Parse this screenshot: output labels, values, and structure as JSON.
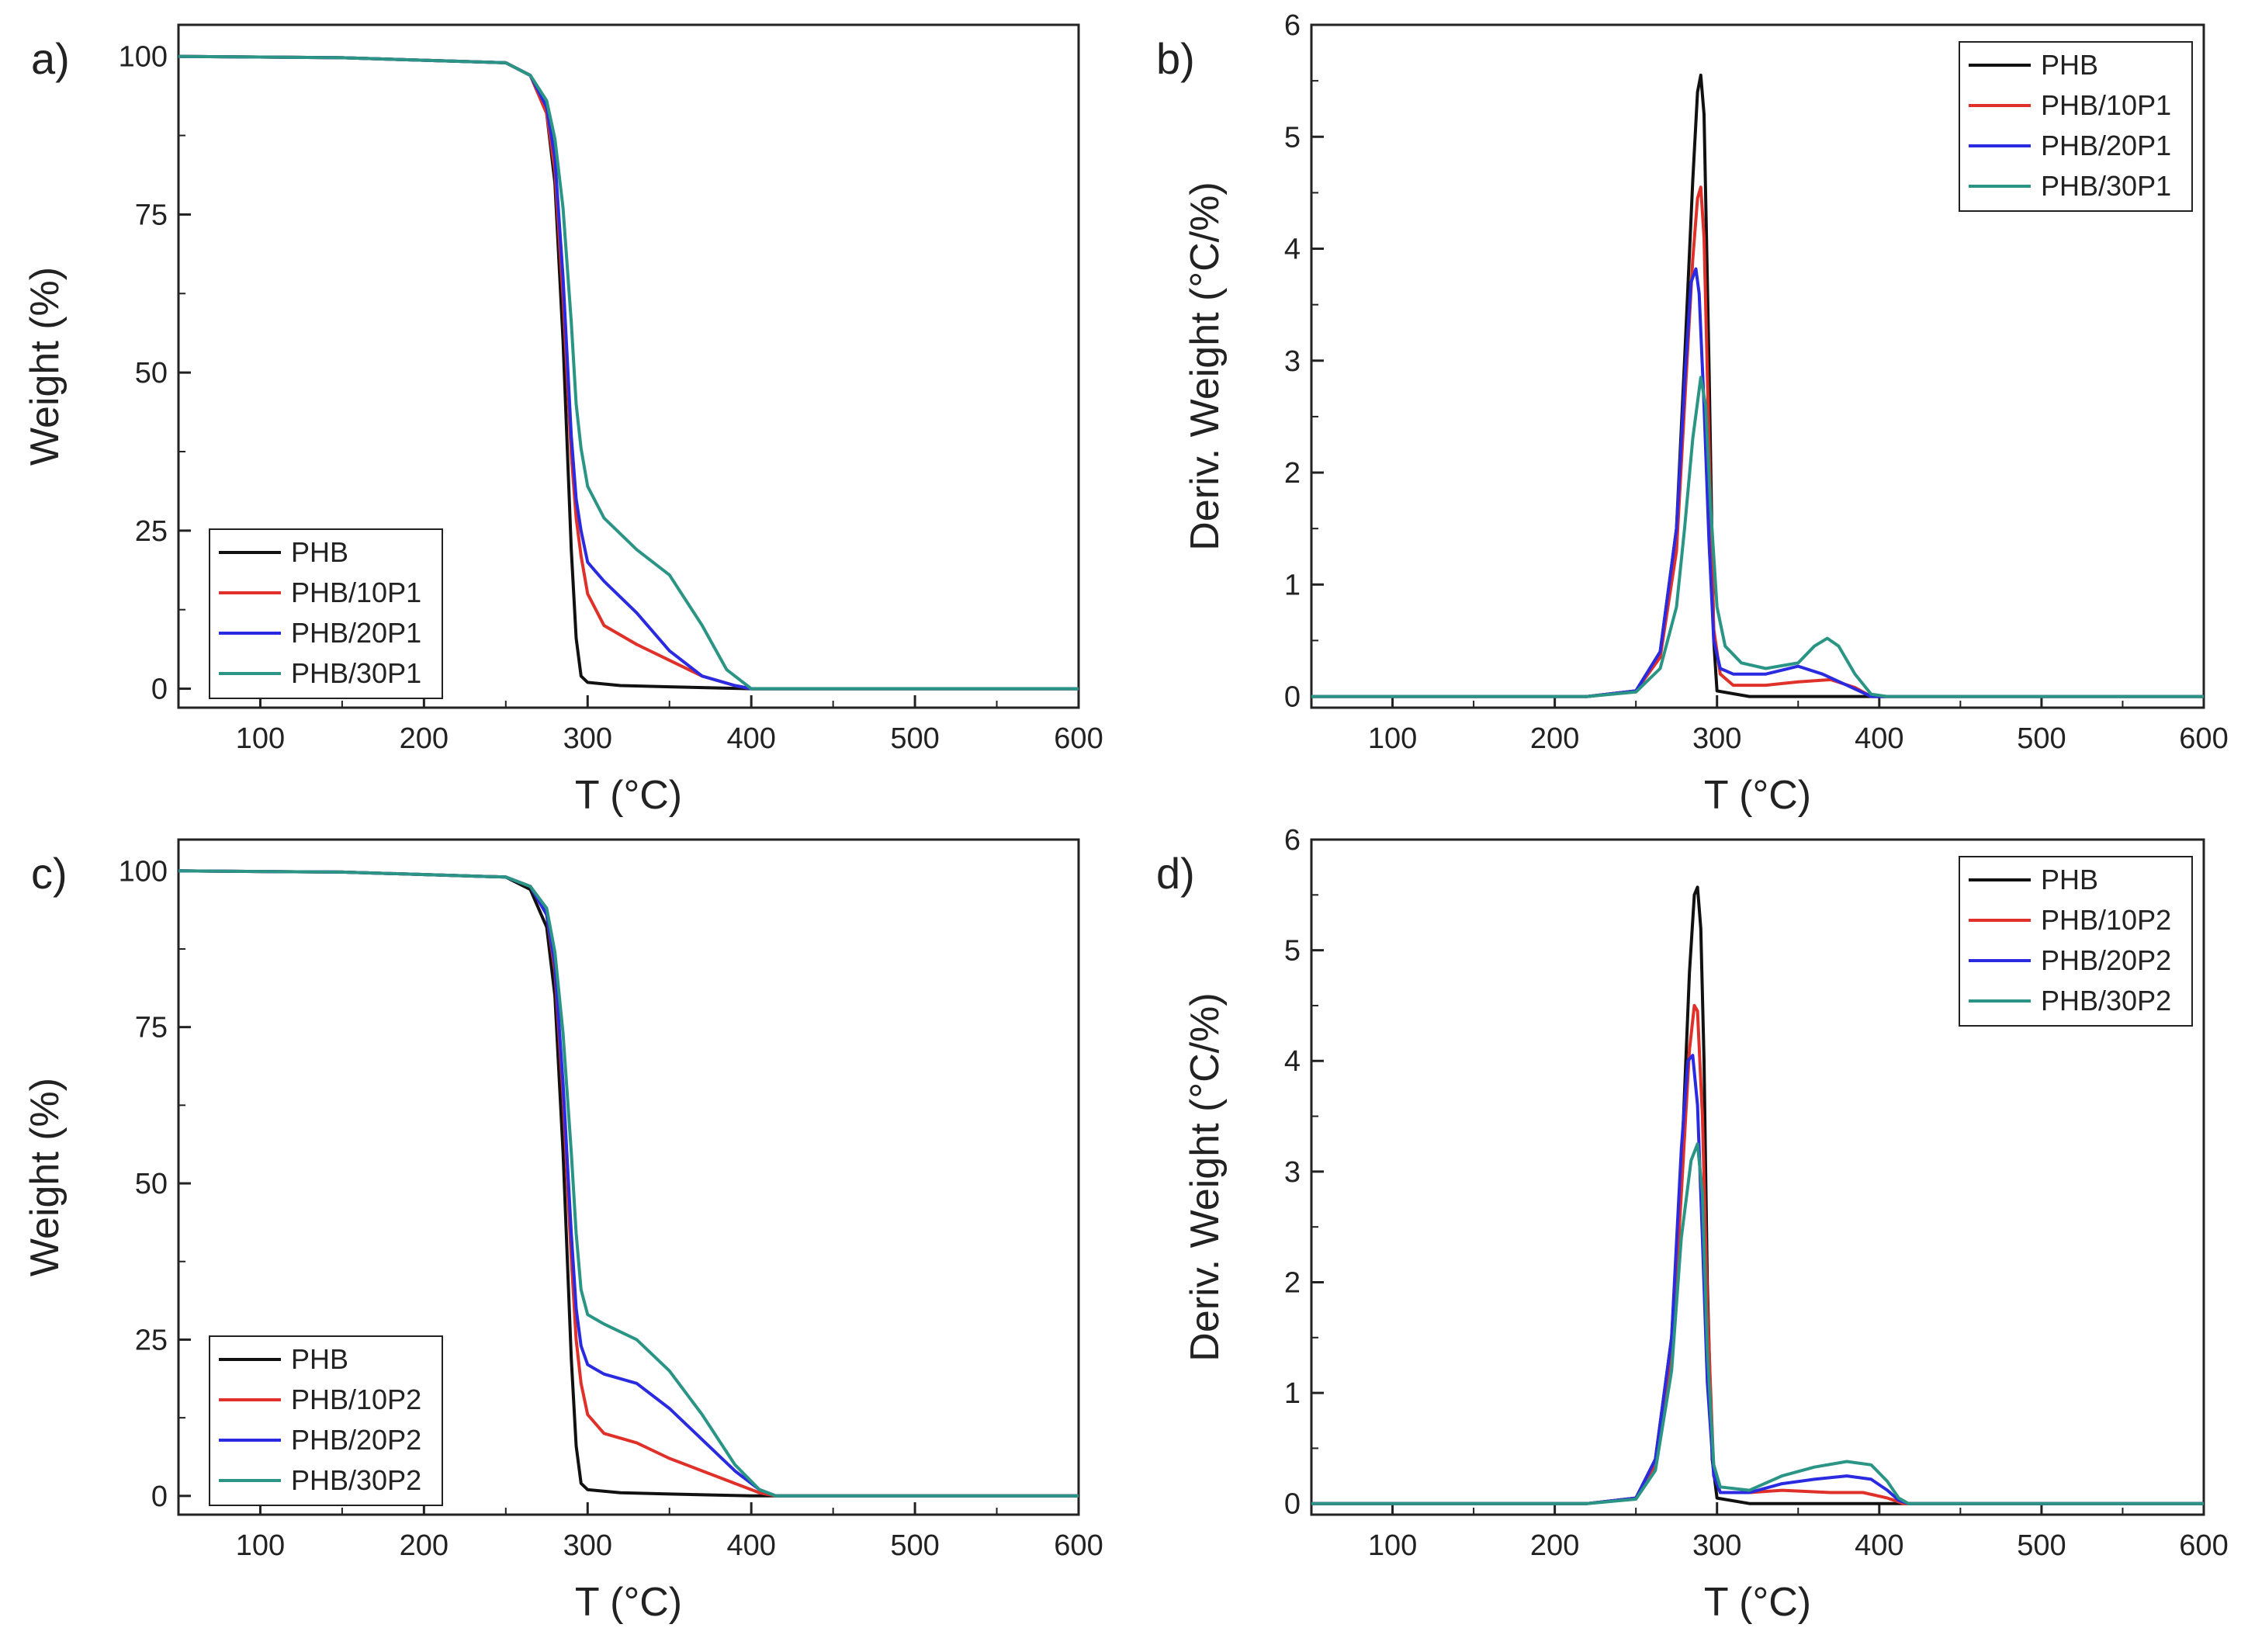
{
  "figure": "Thermogravimetric analysis (TGA) and derivative (DTG) curves",
  "colors": {
    "PHB": "#111111",
    "10": "#e0302a",
    "20": "#2a2ae0",
    "30": "#2a9485"
  },
  "chart_data": [
    {
      "panel": "a)",
      "type": "line",
      "xlabel": "T (°C)",
      "ylabel": "Weight (%)",
      "xlim": [
        50,
        600
      ],
      "ylim": [
        -3,
        105
      ],
      "xticks": [
        100,
        200,
        300,
        400,
        500,
        600
      ],
      "yticks": [
        0,
        25,
        50,
        75,
        100
      ],
      "legend_position": "bottom-left",
      "series": [
        {
          "name": "PHB",
          "color_key": "PHB",
          "x": [
            50,
            150,
            250,
            265,
            275,
            280,
            285,
            290,
            293,
            296,
            300,
            320,
            350,
            400,
            600
          ],
          "y": [
            100,
            99.8,
            99,
            97,
            91,
            80,
            55,
            22,
            8,
            2,
            1,
            0.5,
            0.3,
            0,
            0
          ]
        },
        {
          "name": "PHB/10P1",
          "color_key": "10",
          "x": [
            50,
            150,
            250,
            265,
            275,
            280,
            285,
            290,
            293,
            296,
            300,
            310,
            330,
            350,
            370,
            390,
            400,
            600
          ],
          "y": [
            100,
            99.8,
            99,
            97,
            91,
            82,
            62,
            37,
            27,
            21,
            15,
            10,
            7,
            4.5,
            2,
            0.5,
            0,
            0
          ]
        },
        {
          "name": "PHB/20P1",
          "color_key": "20",
          "x": [
            50,
            150,
            250,
            265,
            275,
            280,
            285,
            290,
            293,
            296,
            300,
            310,
            330,
            350,
            370,
            390,
            400,
            600
          ],
          "y": [
            100,
            99.8,
            99,
            97,
            92,
            84,
            65,
            40,
            30,
            25,
            20,
            17,
            12,
            6,
            2,
            0.5,
            0,
            0
          ]
        },
        {
          "name": "PHB/30P1",
          "color_key": "30",
          "x": [
            50,
            150,
            250,
            265,
            275,
            280,
            285,
            290,
            293,
            296,
            300,
            310,
            330,
            350,
            370,
            385,
            400,
            600
          ],
          "y": [
            100,
            99.8,
            99,
            97,
            93,
            87,
            76,
            58,
            45,
            38,
            32,
            27,
            22,
            18,
            10,
            3,
            0,
            0
          ]
        }
      ]
    },
    {
      "panel": "b)",
      "type": "line",
      "xlabel": "T (°C)",
      "ylabel": "Deriv. Weight (°C/%)",
      "xlim": [
        50,
        600
      ],
      "ylim": [
        -0.1,
        6
      ],
      "xticks": [
        100,
        200,
        300,
        400,
        500,
        600
      ],
      "yticks": [
        0,
        1,
        2,
        3,
        4,
        5,
        6
      ],
      "legend_position": "top-right",
      "series": [
        {
          "name": "PHB",
          "color_key": "PHB",
          "x": [
            50,
            220,
            250,
            265,
            275,
            280,
            285,
            288,
            290,
            292,
            295,
            298,
            300,
            320,
            600
          ],
          "y": [
            0,
            0,
            0.05,
            0.4,
            1.5,
            3,
            4.6,
            5.4,
            5.55,
            5.2,
            3,
            0.5,
            0.05,
            0,
            0
          ]
        },
        {
          "name": "PHB/10P1",
          "color_key": "10",
          "x": [
            50,
            220,
            250,
            265,
            275,
            280,
            285,
            288,
            290,
            292,
            295,
            298,
            302,
            310,
            330,
            350,
            370,
            385,
            395,
            600
          ],
          "y": [
            0,
            0,
            0.05,
            0.35,
            1.3,
            2.6,
            3.9,
            4.45,
            4.55,
            4.1,
            2.3,
            0.6,
            0.2,
            0.1,
            0.1,
            0.13,
            0.15,
            0.08,
            0,
            0
          ]
        },
        {
          "name": "PHB/20P1",
          "color_key": "20",
          "x": [
            50,
            220,
            250,
            265,
            275,
            280,
            284,
            287,
            289,
            292,
            295,
            298,
            302,
            310,
            330,
            350,
            365,
            380,
            395,
            600
          ],
          "y": [
            0,
            0,
            0.05,
            0.4,
            1.5,
            2.8,
            3.7,
            3.82,
            3.6,
            2.6,
            1.4,
            0.5,
            0.25,
            0.2,
            0.2,
            0.27,
            0.2,
            0.1,
            0,
            0
          ]
        },
        {
          "name": "PHB/30P1",
          "color_key": "30",
          "x": [
            50,
            220,
            250,
            265,
            275,
            280,
            285,
            290,
            293,
            296,
            300,
            305,
            315,
            330,
            350,
            360,
            368,
            375,
            385,
            395,
            405,
            600
          ],
          "y": [
            0,
            0,
            0.04,
            0.25,
            0.8,
            1.5,
            2.3,
            2.85,
            2.6,
            1.7,
            0.8,
            0.45,
            0.3,
            0.25,
            0.3,
            0.45,
            0.52,
            0.45,
            0.2,
            0.02,
            0,
            0
          ]
        }
      ]
    },
    {
      "panel": "c)",
      "type": "line",
      "xlabel": "T (°C)",
      "ylabel": "Weight (%)",
      "xlim": [
        50,
        600
      ],
      "ylim": [
        -3,
        105
      ],
      "xticks": [
        100,
        200,
        300,
        400,
        500,
        600
      ],
      "yticks": [
        0,
        25,
        50,
        75,
        100
      ],
      "legend_position": "bottom-left",
      "series": [
        {
          "name": "PHB",
          "color_key": "PHB",
          "x": [
            50,
            150,
            250,
            265,
            275,
            280,
            285,
            290,
            293,
            296,
            300,
            320,
            350,
            400,
            600
          ],
          "y": [
            100,
            99.8,
            99,
            97,
            91,
            80,
            55,
            22,
            8,
            2,
            1,
            0.5,
            0.3,
            0,
            0
          ]
        },
        {
          "name": "PHB/10P2",
          "color_key": "10",
          "x": [
            50,
            150,
            250,
            265,
            275,
            280,
            285,
            290,
            293,
            296,
            300,
            310,
            330,
            350,
            370,
            390,
            405,
            415,
            600
          ],
          "y": [
            100,
            99.8,
            99,
            97.5,
            93,
            84,
            64,
            38,
            25,
            18,
            13,
            10,
            8.5,
            6,
            4,
            2,
            0.5,
            0,
            0
          ]
        },
        {
          "name": "PHB/20P2",
          "color_key": "20",
          "x": [
            50,
            150,
            250,
            265,
            275,
            280,
            285,
            290,
            293,
            296,
            300,
            310,
            330,
            350,
            370,
            390,
            405,
            415,
            600
          ],
          "y": [
            100,
            99.8,
            99,
            97.5,
            93,
            85,
            66,
            42,
            30,
            24,
            21,
            19.5,
            18,
            14,
            9,
            4,
            1,
            0,
            0
          ]
        },
        {
          "name": "PHB/30P2",
          "color_key": "30",
          "x": [
            50,
            150,
            250,
            265,
            275,
            280,
            285,
            290,
            293,
            296,
            300,
            310,
            330,
            350,
            370,
            390,
            405,
            415,
            600
          ],
          "y": [
            100,
            99.8,
            99,
            97.5,
            94,
            87,
            74,
            55,
            42,
            33,
            29,
            27.5,
            25,
            20,
            13,
            5,
            1,
            0,
            0
          ]
        }
      ]
    },
    {
      "panel": "d)",
      "type": "line",
      "xlabel": "T (°C)",
      "ylabel": "Deriv. Weight (°C/%)",
      "xlim": [
        50,
        600
      ],
      "ylim": [
        -0.1,
        6
      ],
      "xticks": [
        100,
        200,
        300,
        400,
        500,
        600
      ],
      "yticks": [
        0,
        1,
        2,
        3,
        4,
        5,
        6
      ],
      "legend_position": "top-right",
      "series": [
        {
          "name": "PHB",
          "color_key": "PHB",
          "x": [
            50,
            220,
            250,
            262,
            272,
            278,
            283,
            286,
            288,
            290,
            292,
            294,
            297,
            300,
            320,
            600
          ],
          "y": [
            0,
            0,
            0.05,
            0.4,
            1.5,
            3,
            4.8,
            5.5,
            5.57,
            5.2,
            4,
            2,
            0.4,
            0.05,
            0,
            0
          ]
        },
        {
          "name": "PHB/10P2",
          "color_key": "10",
          "x": [
            50,
            220,
            250,
            262,
            272,
            278,
            283,
            286,
            288,
            291,
            294,
            298,
            302,
            320,
            340,
            370,
            390,
            405,
            415,
            600
          ],
          "y": [
            0,
            0,
            0.05,
            0.35,
            1.3,
            2.8,
            4.1,
            4.5,
            4.45,
            3.5,
            1.8,
            0.3,
            0.1,
            0.1,
            0.12,
            0.1,
            0.1,
            0.05,
            0,
            0
          ]
        },
        {
          "name": "PHB/20P2",
          "color_key": "20",
          "x": [
            50,
            220,
            250,
            262,
            272,
            278,
            282,
            285,
            288,
            291,
            294,
            298,
            302,
            320,
            340,
            360,
            380,
            395,
            405,
            412,
            418,
            600
          ],
          "y": [
            0,
            0,
            0.05,
            0.4,
            1.5,
            3.2,
            4,
            4.05,
            3.6,
            2.4,
            1.1,
            0.25,
            0.1,
            0.1,
            0.18,
            0.22,
            0.25,
            0.22,
            0.12,
            0.03,
            0,
            0
          ]
        },
        {
          "name": "PHB/30P2",
          "color_key": "30",
          "x": [
            50,
            220,
            250,
            262,
            272,
            278,
            284,
            288,
            291,
            294,
            298,
            302,
            320,
            340,
            360,
            380,
            395,
            405,
            412,
            418,
            600
          ],
          "y": [
            0,
            0,
            0.04,
            0.3,
            1.2,
            2.4,
            3.1,
            3.25,
            2.8,
            1.4,
            0.35,
            0.15,
            0.12,
            0.25,
            0.33,
            0.38,
            0.35,
            0.2,
            0.05,
            0,
            0
          ]
        }
      ]
    }
  ]
}
